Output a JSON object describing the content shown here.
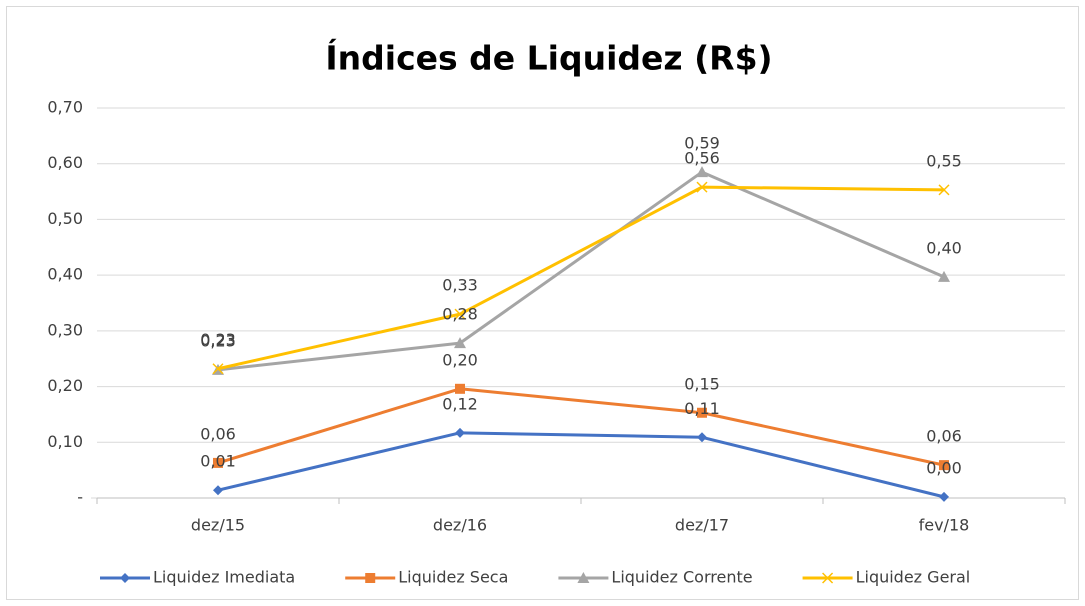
{
  "chart_data": {
    "type": "line",
    "title": "Índices de Liquidez (R$)",
    "categories": [
      "dez/15",
      "dez/16",
      "dez/17",
      "fev/18"
    ],
    "series": [
      {
        "name": "Liquidez Imediata",
        "color": "#4472c4",
        "marker": "diamond",
        "values": [
          0.014,
          0.117,
          0.109,
          0.002
        ],
        "value_labels": [
          "0,01",
          "0,12",
          "0,11",
          "0,00"
        ]
      },
      {
        "name": "Liquidez Seca",
        "color": "#ed7d31",
        "marker": "square",
        "values": [
          0.063,
          0.196,
          0.153,
          0.059
        ],
        "value_labels": [
          "0,06",
          "0,20",
          "0,15",
          "0,06"
        ]
      },
      {
        "name": "Liquidez Corrente",
        "color": "#a5a5a5",
        "marker": "triangle",
        "values": [
          0.23,
          0.278,
          0.585,
          0.397
        ],
        "value_labels": [
          "0,23",
          "0,28",
          "0,59",
          "0,40"
        ]
      },
      {
        "name": "Liquidez Geral",
        "color": "#ffc000",
        "marker": "x",
        "values": [
          0.232,
          0.33,
          0.558,
          0.553
        ],
        "value_labels": [
          "0,23",
          "0,33",
          "0,56",
          "0,55"
        ]
      }
    ],
    "ylim": [
      0,
      0.7
    ],
    "yticks": [
      {
        "value": 0,
        "label": "-"
      },
      {
        "value": 0.1,
        "label": "0,10"
      },
      {
        "value": 0.2,
        "label": "0,20"
      },
      {
        "value": 0.3,
        "label": "0,30"
      },
      {
        "value": 0.4,
        "label": "0,40"
      },
      {
        "value": 0.5,
        "label": "0,50"
      },
      {
        "value": 0.6,
        "label": "0,60"
      },
      {
        "value": 0.7,
        "label": "0,70"
      }
    ],
    "grid": true,
    "legend": "bottom"
  }
}
